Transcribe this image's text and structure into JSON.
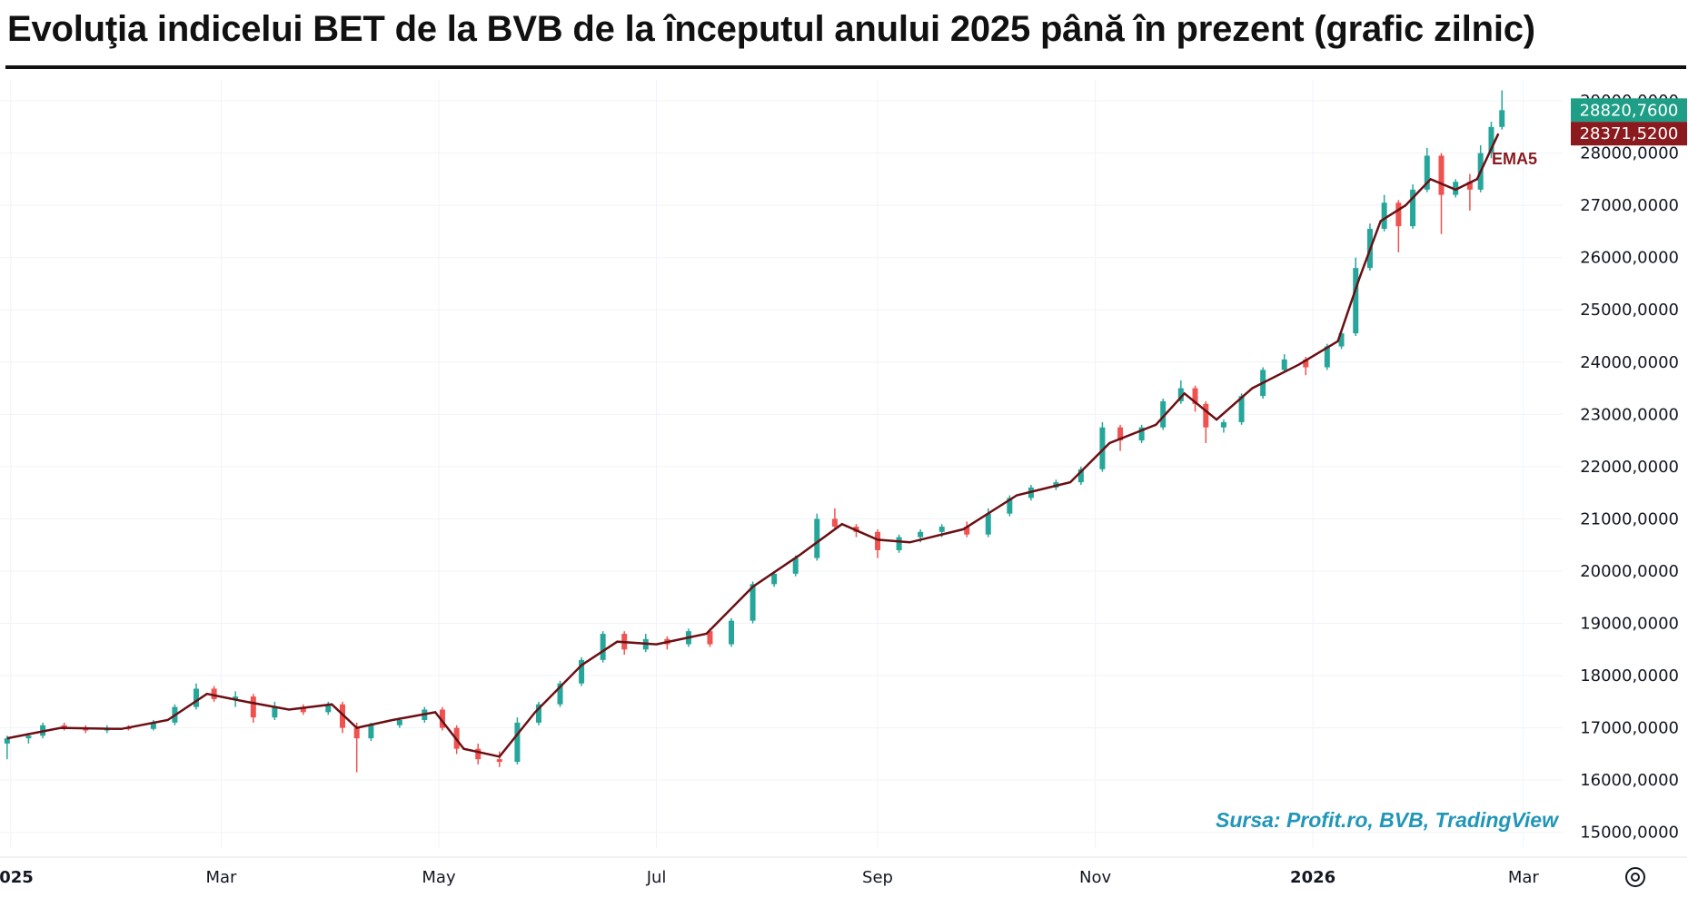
{
  "title": "Evoluţia indicelui BET de la BVB de la începutul anului 2025 până în prezent (grafic zilnic)",
  "source_note": "Sursa: Profit.ro, BVB, TradingView",
  "icons": {
    "settings": "gear-icon"
  },
  "colors": {
    "up": "#26a69a",
    "down": "#ef5350",
    "ema": "#6b0f14",
    "last_price_tag": "#1e9e86",
    "ema_tag": "#8b1a1f",
    "source": "#2196b8"
  },
  "chart_data": {
    "type": "candlestick",
    "title": "Evoluţia indicelui BET de la BVB de la începutul anului 2025 până în prezent (grafic zilnic)",
    "x_ticks": [
      {
        "label": "2025",
        "bold": true,
        "date": "2025-01-01"
      },
      {
        "label": "Mar",
        "bold": false,
        "date": "2025-03-01"
      },
      {
        "label": "May",
        "bold": false,
        "date": "2025-05-01"
      },
      {
        "label": "Jul",
        "bold": false,
        "date": "2025-07-01"
      },
      {
        "label": "Sep",
        "bold": false,
        "date": "2025-09-01"
      },
      {
        "label": "Nov",
        "bold": false,
        "date": "2025-11-01"
      },
      {
        "label": "2026",
        "bold": true,
        "date": "2026-01-01"
      },
      {
        "label": "Mar",
        "bold": false,
        "date": "2026-03-01"
      }
    ],
    "y_ticks": [
      "15000,0000",
      "16000,0000",
      "17000,0000",
      "18000,0000",
      "19000,0000",
      "20000,0000",
      "21000,0000",
      "22000,0000",
      "23000,0000",
      "24000,0000",
      "25000,0000",
      "26000,0000",
      "27000,0000",
      "28000,0000",
      "29000,0000"
    ],
    "ylim": [
      14700,
      29400
    ],
    "xlim": [
      "2024-12-29",
      "2026-03-12"
    ],
    "grid": true,
    "last_price_label": "28820,7600",
    "last_price": 28820.76,
    "ema_label": "28371,5200",
    "ema_value": 28371.52,
    "ema_name": "EMA5",
    "series": [
      {
        "name": "EMA5",
        "type": "line",
        "points": [
          [
            "2024-12-31",
            16800
          ],
          [
            "2025-01-15",
            17000
          ],
          [
            "2025-02-01",
            16980
          ],
          [
            "2025-02-14",
            17150
          ],
          [
            "2025-02-25",
            17650
          ],
          [
            "2025-03-08",
            17500
          ],
          [
            "2025-03-20",
            17350
          ],
          [
            "2025-04-01",
            17450
          ],
          [
            "2025-04-08",
            17000
          ],
          [
            "2025-04-18",
            17150
          ],
          [
            "2025-04-30",
            17300
          ],
          [
            "2025-05-08",
            16600
          ],
          [
            "2025-05-18",
            16450
          ],
          [
            "2025-05-28",
            17300
          ],
          [
            "2025-06-10",
            18200
          ],
          [
            "2025-06-20",
            18650
          ],
          [
            "2025-07-01",
            18600
          ],
          [
            "2025-07-15",
            18800
          ],
          [
            "2025-07-28",
            19700
          ],
          [
            "2025-08-10",
            20300
          ],
          [
            "2025-08-22",
            20900
          ],
          [
            "2025-09-01",
            20600
          ],
          [
            "2025-09-10",
            20550
          ],
          [
            "2025-09-25",
            20800
          ],
          [
            "2025-10-10",
            21450
          ],
          [
            "2025-10-25",
            21700
          ],
          [
            "2025-11-05",
            22450
          ],
          [
            "2025-11-18",
            22800
          ],
          [
            "2025-11-26",
            23400
          ],
          [
            "2025-12-05",
            22900
          ],
          [
            "2025-12-15",
            23500
          ],
          [
            "2025-12-28",
            23950
          ],
          [
            "2026-01-08",
            24400
          ],
          [
            "2026-01-14",
            25600
          ],
          [
            "2026-01-20",
            26700
          ],
          [
            "2026-01-27",
            27000
          ],
          [
            "2026-02-03",
            27500
          ],
          [
            "2026-02-10",
            27300
          ],
          [
            "2026-02-16",
            27500
          ],
          [
            "2026-02-22",
            28371.52
          ]
        ]
      },
      {
        "name": "BET",
        "type": "candlestick",
        "points": [
          [
            "2024-12-31",
            16700,
            16850,
            16400,
            16800
          ],
          [
            "2025-01-06",
            16800,
            16900,
            16700,
            16850
          ],
          [
            "2025-01-10",
            16850,
            17100,
            16800,
            17050
          ],
          [
            "2025-01-16",
            17050,
            17100,
            16950,
            17000
          ],
          [
            "2025-01-22",
            17000,
            17050,
            16900,
            16950
          ],
          [
            "2025-01-28",
            16950,
            17050,
            16900,
            17000
          ],
          [
            "2025-02-03",
            17000,
            17050,
            16950,
            16980
          ],
          [
            "2025-02-10",
            16980,
            17150,
            16950,
            17100
          ],
          [
            "2025-02-16",
            17100,
            17450,
            17050,
            17400
          ],
          [
            "2025-02-22",
            17400,
            17850,
            17350,
            17750
          ],
          [
            "2025-02-27",
            17750,
            17800,
            17500,
            17550
          ],
          [
            "2025-03-05",
            17550,
            17700,
            17400,
            17600
          ],
          [
            "2025-03-10",
            17600,
            17650,
            17100,
            17200
          ],
          [
            "2025-03-16",
            17200,
            17500,
            17150,
            17400
          ],
          [
            "2025-03-24",
            17400,
            17450,
            17250,
            17300
          ],
          [
            "2025-03-31",
            17300,
            17500,
            17250,
            17450
          ],
          [
            "2025-04-04",
            17450,
            17500,
            16900,
            17000
          ],
          [
            "2025-04-08",
            17000,
            17100,
            16150,
            16800
          ],
          [
            "2025-04-12",
            16800,
            17100,
            16750,
            17050
          ],
          [
            "2025-04-20",
            17050,
            17200,
            17000,
            17150
          ],
          [
            "2025-04-27",
            17150,
            17400,
            17100,
            17350
          ],
          [
            "2025-05-02",
            17350,
            17400,
            16950,
            17000
          ],
          [
            "2025-05-06",
            17000,
            17050,
            16500,
            16600
          ],
          [
            "2025-05-12",
            16600,
            16700,
            16300,
            16400
          ],
          [
            "2025-05-18",
            16400,
            16550,
            16250,
            16350
          ],
          [
            "2025-05-23",
            16350,
            17200,
            16300,
            17100
          ],
          [
            "2025-05-29",
            17100,
            17500,
            17050,
            17450
          ],
          [
            "2025-06-04",
            17450,
            17900,
            17400,
            17850
          ],
          [
            "2025-06-10",
            17850,
            18350,
            17800,
            18300
          ],
          [
            "2025-06-16",
            18300,
            18850,
            18250,
            18800
          ],
          [
            "2025-06-22",
            18800,
            18850,
            18400,
            18500
          ],
          [
            "2025-06-28",
            18500,
            18800,
            18450,
            18700
          ],
          [
            "2025-07-04",
            18700,
            18750,
            18500,
            18600
          ],
          [
            "2025-07-10",
            18600,
            18900,
            18550,
            18850
          ],
          [
            "2025-07-16",
            18850,
            18900,
            18550,
            18600
          ],
          [
            "2025-07-22",
            18600,
            19100,
            18550,
            19050
          ],
          [
            "2025-07-28",
            19050,
            19800,
            19000,
            19750
          ],
          [
            "2025-08-03",
            19750,
            20000,
            19700,
            19950
          ],
          [
            "2025-08-09",
            19950,
            20300,
            19900,
            20250
          ],
          [
            "2025-08-15",
            20250,
            21100,
            20200,
            21000
          ],
          [
            "2025-08-20",
            21000,
            21200,
            20800,
            20850
          ],
          [
            "2025-08-26",
            20850,
            20900,
            20650,
            20750
          ],
          [
            "2025-09-01",
            20750,
            20800,
            20250,
            20400
          ],
          [
            "2025-09-07",
            20400,
            20700,
            20350,
            20650
          ],
          [
            "2025-09-13",
            20650,
            20800,
            20550,
            20750
          ],
          [
            "2025-09-19",
            20750,
            20900,
            20650,
            20850
          ],
          [
            "2025-09-26",
            20850,
            20950,
            20650,
            20700
          ],
          [
            "2025-10-02",
            20700,
            21200,
            20650,
            21100
          ],
          [
            "2025-10-08",
            21100,
            21450,
            21050,
            21400
          ],
          [
            "2025-10-14",
            21400,
            21650,
            21350,
            21600
          ],
          [
            "2025-10-21",
            21600,
            21750,
            21550,
            21700
          ],
          [
            "2025-10-28",
            21700,
            22000,
            21650,
            21950
          ],
          [
            "2025-11-03",
            21950,
            22850,
            21900,
            22750
          ],
          [
            "2025-11-08",
            22750,
            22800,
            22300,
            22500
          ],
          [
            "2025-11-14",
            22500,
            22800,
            22450,
            22750
          ],
          [
            "2025-11-20",
            22750,
            23300,
            22700,
            23250
          ],
          [
            "2025-11-25",
            23250,
            23650,
            23200,
            23500
          ],
          [
            "2025-11-29",
            23500,
            23550,
            23050,
            23200
          ],
          [
            "2025-12-02",
            23200,
            23250,
            22450,
            22750
          ],
          [
            "2025-12-07",
            22750,
            22900,
            22650,
            22850
          ],
          [
            "2025-12-12",
            22850,
            23400,
            22800,
            23350
          ],
          [
            "2025-12-18",
            23350,
            23900,
            23300,
            23850
          ],
          [
            "2025-12-24",
            23850,
            24150,
            23800,
            24050
          ],
          [
            "2025-12-30",
            24050,
            24100,
            23750,
            23900
          ],
          [
            "2026-01-05",
            23900,
            24350,
            23850,
            24300
          ],
          [
            "2026-01-09",
            24300,
            24600,
            24250,
            24550
          ],
          [
            "2026-01-13",
            24550,
            26000,
            24500,
            25800
          ],
          [
            "2026-01-17",
            25800,
            26650,
            25750,
            26550
          ],
          [
            "2026-01-21",
            26550,
            27200,
            26500,
            27050
          ],
          [
            "2026-01-25",
            27050,
            27100,
            26100,
            26600
          ],
          [
            "2026-01-29",
            26600,
            27400,
            26550,
            27300
          ],
          [
            "2026-02-02",
            27300,
            28100,
            27250,
            27950
          ],
          [
            "2026-02-06",
            27950,
            28000,
            26450,
            27200
          ],
          [
            "2026-02-10",
            27200,
            27500,
            27150,
            27450
          ],
          [
            "2026-02-14",
            27450,
            27600,
            26900,
            27300
          ],
          [
            "2026-02-17",
            27300,
            28150,
            27250,
            28000
          ],
          [
            "2026-02-20",
            28000,
            28600,
            27900,
            28500
          ],
          [
            "2026-02-23",
            28500,
            29200,
            28450,
            28820.76
          ]
        ]
      }
    ]
  }
}
